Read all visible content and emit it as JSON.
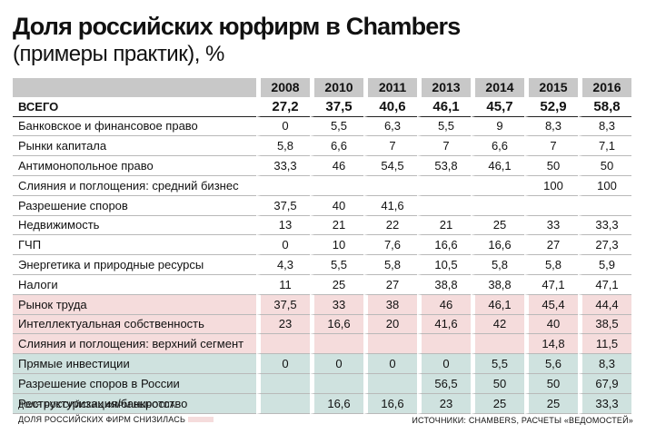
{
  "title": "Доля российских юрфирм в Chambers",
  "subtitle": "(примеры практик), %",
  "columns": [
    "2008",
    "2010",
    "2011",
    "2013",
    "2014",
    "2015",
    "2016"
  ],
  "rows": [
    {
      "label": "ВСЕГО",
      "values": [
        "27,2",
        "37,5",
        "40,6",
        "46,1",
        "45,7",
        "52,9",
        "58,8"
      ],
      "type": "total"
    },
    {
      "label": "Банковское и финансовое право",
      "values": [
        "0",
        "5,5",
        "6,3",
        "5,5",
        "9",
        "8,3",
        "8,3"
      ],
      "type": "normal"
    },
    {
      "label": "Рынки капитала",
      "values": [
        "5,8",
        "6,6",
        "7",
        "7",
        "6,6",
        "7",
        "7,1"
      ],
      "type": "normal"
    },
    {
      "label": "Антимонопольное право",
      "values": [
        "33,3",
        "46",
        "54,5",
        "53,8",
        "46,1",
        "50",
        "50"
      ],
      "type": "normal"
    },
    {
      "label": "Слияния и поглощения: средний бизнес",
      "values": [
        "",
        "",
        "",
        "",
        "",
        "100",
        "100"
      ],
      "type": "normal"
    },
    {
      "label": "Разрешение споров",
      "values": [
        "37,5",
        "40",
        "41,6",
        "",
        "",
        "",
        ""
      ],
      "type": "normal"
    },
    {
      "label": "Недвижимость",
      "values": [
        "13",
        "21",
        "22",
        "21",
        "25",
        "33",
        "33,3"
      ],
      "type": "normal"
    },
    {
      "label": "ГЧП",
      "values": [
        "0",
        "10",
        "7,6",
        "16,6",
        "16,6",
        "27",
        "27,3"
      ],
      "type": "normal"
    },
    {
      "label": "Энергетика и природные ресурсы",
      "values": [
        "4,3",
        "5,5",
        "5,8",
        "10,5",
        "5,8",
        "5,8",
        "5,9"
      ],
      "type": "normal"
    },
    {
      "label": "Налоги",
      "values": [
        "11",
        "25",
        "27",
        "38,8",
        "38,8",
        "47,1",
        "47,1"
      ],
      "type": "normal"
    },
    {
      "label": "Рынок труда",
      "values": [
        "37,5",
        "33",
        "38",
        "46",
        "46,1",
        "45,4",
        "44,4"
      ],
      "type": "pink"
    },
    {
      "label": "Интеллектуальная собственность",
      "values": [
        "23",
        "16,6",
        "20",
        "41,6",
        "42",
        "40",
        "38,5"
      ],
      "type": "pink"
    },
    {
      "label": "Слияния и поглощения: верхний сегмент",
      "values": [
        "",
        "",
        "",
        "",
        "",
        "14,8",
        "11,5"
      ],
      "type": "pink"
    },
    {
      "label": "Прямые инвестиции",
      "values": [
        "0",
        "0",
        "0",
        "0",
        "5,5",
        "5,6",
        "8,3"
      ],
      "type": "green"
    },
    {
      "label": "Разрешение споров в России",
      "values": [
        "",
        "",
        "",
        "56,5",
        "50",
        "50",
        "67,9"
      ],
      "type": "green"
    },
    {
      "label": "Реструктуризация/банкротство",
      "values": [
        "",
        "16,6",
        "16,6",
        "23",
        "25",
        "25",
        "33,3"
      ],
      "type": "green"
    }
  ],
  "legend": {
    "increased": "Доля российских фирм выросла",
    "decreased": "Доля российских фирм снизилась"
  },
  "source": "Источники: Chambers, расчеты «Ведомостей»",
  "colors": {
    "increased": "#cfe2df",
    "decreased": "#f5dcdc",
    "header": "#c8c8c8"
  }
}
